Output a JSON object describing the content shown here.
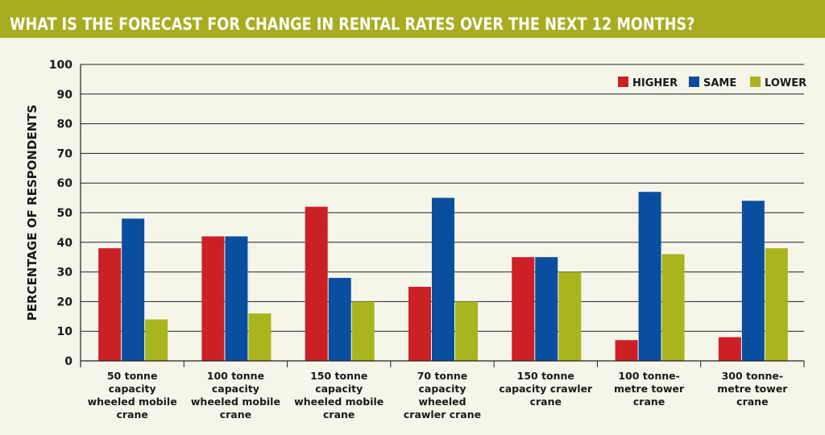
{
  "header": {
    "title": "WHAT IS THE FORECAST FOR CHANGE IN RENTAL RATES OVER THE NEXT 12 MONTHS?"
  },
  "colors": {
    "header_bg": "#a8ac1f",
    "background": "#f6f5ea",
    "higher": "#cc2027",
    "same": "#0a4ea0",
    "lower": "#a9b51f"
  },
  "chart_data": {
    "type": "bar",
    "title": "WHAT IS THE FORECAST FOR CHANGE IN RENTAL RATES OVER THE NEXT 12 MONTHS?",
    "ylabel": "PERCENTAGE OF RESPONDENTS",
    "xlabel": "",
    "ylim": [
      0,
      100
    ],
    "yticks": [
      0,
      10,
      20,
      30,
      40,
      50,
      60,
      70,
      80,
      90,
      100
    ],
    "grid": true,
    "legend_position": "top-right",
    "categories": [
      [
        "50 tonne",
        "capacity",
        "wheeled mobile",
        "crane"
      ],
      [
        "100 tonne",
        "capacity",
        "wheeled mobile",
        "crane"
      ],
      [
        "150 tonne",
        "capacity",
        "wheeled mobile",
        "crane"
      ],
      [
        "70 tonne",
        "capacity",
        "wheeled",
        "crawler crane"
      ],
      [
        "150 tonne",
        "capacity crawler",
        "crane"
      ],
      [
        "100 tonne-",
        "metre tower",
        "crane"
      ],
      [
        "300 tonne-",
        "metre tower",
        "crane"
      ]
    ],
    "series": [
      {
        "name": "HIGHER",
        "color": "#cc2027",
        "values": [
          38,
          42,
          52,
          25,
          35,
          7,
          8
        ]
      },
      {
        "name": "SAME",
        "color": "#0a4ea0",
        "values": [
          48,
          42,
          28,
          55,
          35,
          57,
          54
        ]
      },
      {
        "name": "LOWER",
        "color": "#a9b51f",
        "values": [
          14,
          16,
          20,
          20,
          30,
          36,
          38
        ]
      }
    ]
  }
}
